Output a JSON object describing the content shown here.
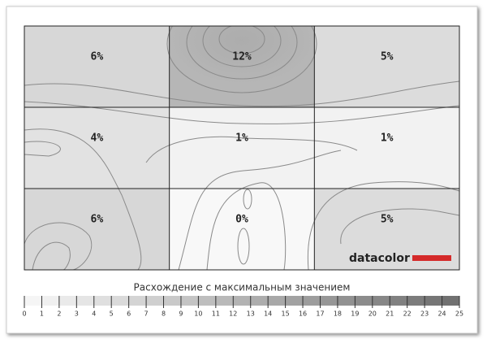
{
  "chart_data": {
    "type": "heatmap",
    "rows": [
      [
        6,
        12,
        5
      ],
      [
        4,
        1,
        1
      ],
      [
        6,
        0,
        5
      ]
    ],
    "value_labels": [
      [
        "6%",
        "12%",
        "5%"
      ],
      [
        "4%",
        "1%",
        "1%"
      ],
      [
        "6%",
        "0%",
        "5%"
      ]
    ],
    "brand": "datacolor",
    "colorbar_title": "Расхождение с максимальным значением",
    "clim": [
      0,
      25
    ],
    "colorbar_ticks": [
      0,
      1,
      2,
      3,
      4,
      5,
      6,
      7,
      8,
      9,
      10,
      11,
      12,
      13,
      14,
      15,
      16,
      17,
      18,
      19,
      20,
      21,
      22,
      23,
      24,
      25
    ]
  }
}
